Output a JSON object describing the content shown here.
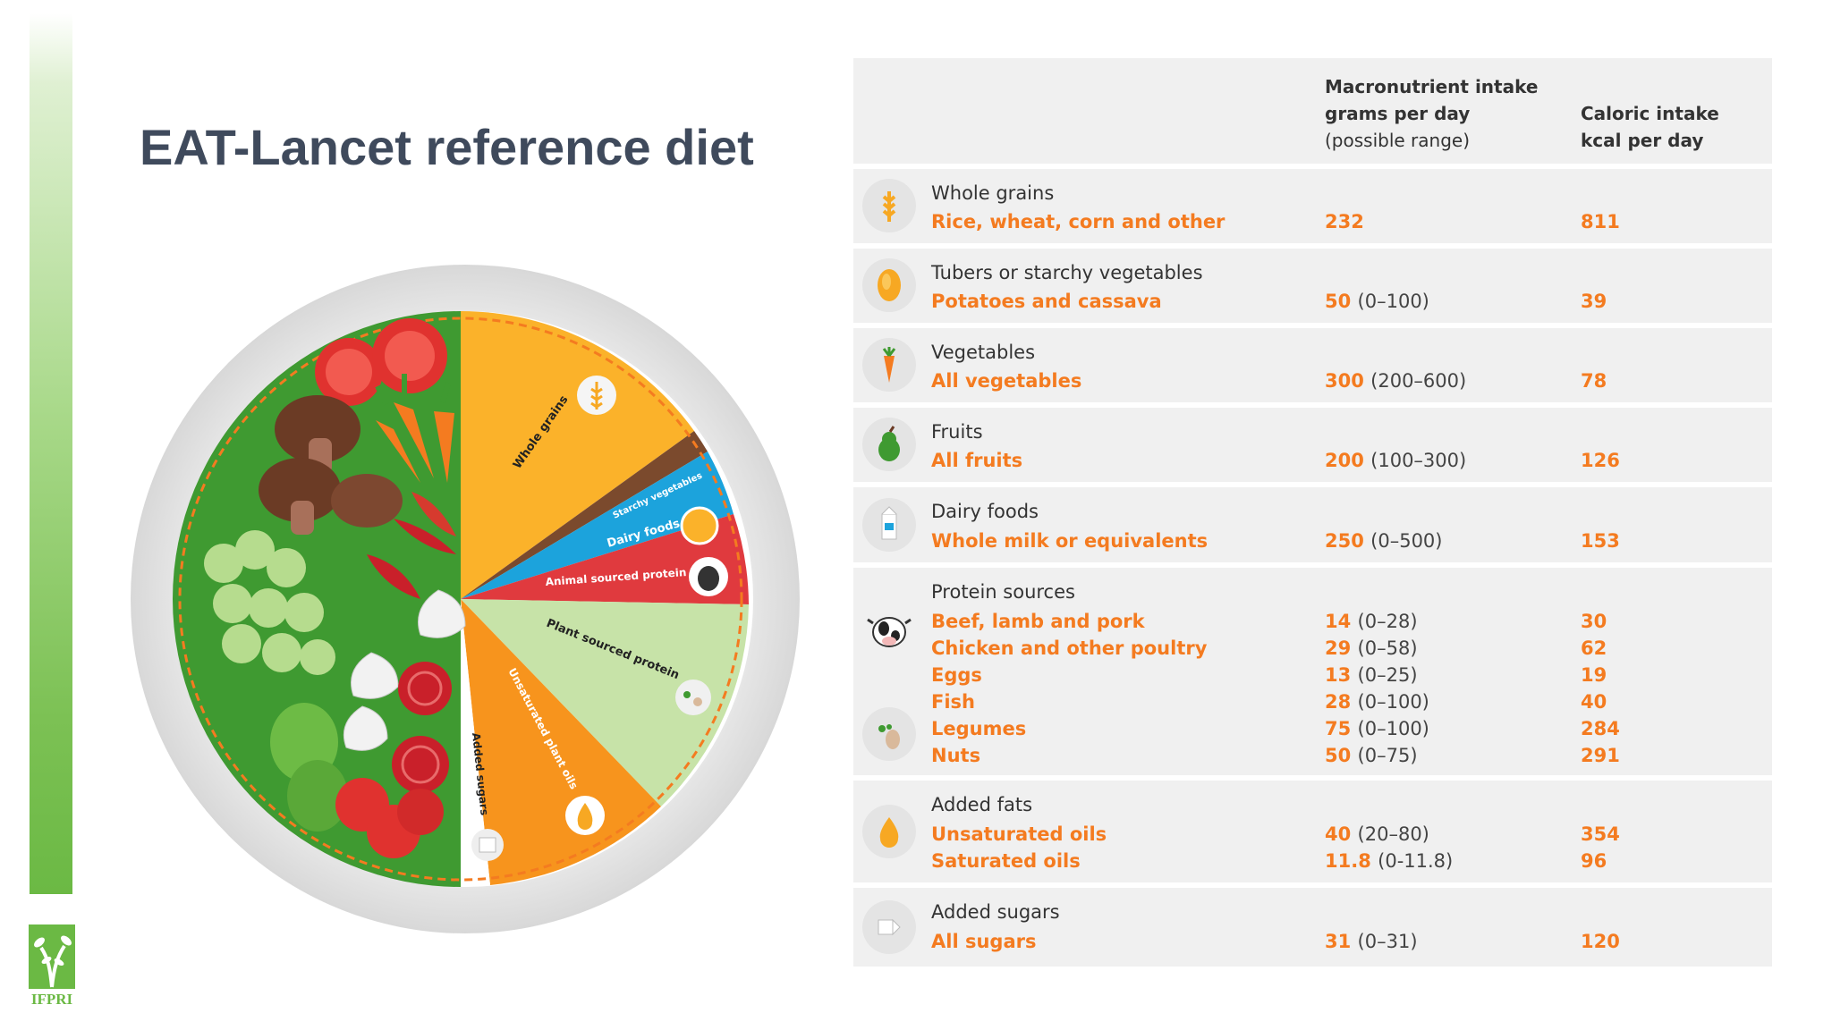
{
  "title": "EAT-Lancet reference diet",
  "logo": {
    "text": "IFPRI"
  },
  "plate": {
    "labels": {
      "whole_grains": "Whole grains",
      "starchy_vegetables": "Starchy vegetables",
      "dairy_foods": "Dairy foods",
      "animal_protein": "Animal sourced protein",
      "plant_protein": "Plant sourced protein",
      "unsaturated_oils": "Unsaturated plant oils",
      "added_sugars": "Added sugars"
    },
    "colors": {
      "whole_grains": "#fbb22a",
      "starchy_vegetables": "#7b4a2d",
      "dairy_foods": "#1ca3dc",
      "animal_protein": "#e03a3e",
      "plant_protein": "#c7e3a8",
      "unsaturated_oils": "#f7941d",
      "added_sugars": "#ffffff",
      "vegetables_fruits": "#3f9a31"
    }
  },
  "table": {
    "header": {
      "macro_l1": "Macronutrient intake",
      "macro_l2": "grams per day",
      "macro_l3": "(possible range)",
      "cal_l1": "Caloric intake",
      "cal_l2": "kcal per day"
    },
    "rows": [
      {
        "category": "Whole grains",
        "icon": "wheat-icon",
        "items": [
          {
            "name": "Rice, wheat, corn and other",
            "grams": "232",
            "range": "",
            "kcal": "811"
          }
        ]
      },
      {
        "category": "Tubers or starchy vegetables",
        "icon": "potato-icon",
        "items": [
          {
            "name": "Potatoes and cassava",
            "grams": "50",
            "range": "(0–100)",
            "kcal": "39"
          }
        ]
      },
      {
        "category": "Vegetables",
        "icon": "carrot-icon",
        "items": [
          {
            "name": "All vegetables",
            "grams": "300",
            "range": "(200–600)",
            "kcal": "78"
          }
        ]
      },
      {
        "category": "Fruits",
        "icon": "pear-icon",
        "items": [
          {
            "name": "All fruits",
            "grams": "200",
            "range": "(100–300)",
            "kcal": "126"
          }
        ]
      },
      {
        "category": "Dairy foods",
        "icon": "milk-carton-icon",
        "items": [
          {
            "name": "Whole milk or equivalents",
            "grams": "250",
            "range": "(0–500)",
            "kcal": "153"
          }
        ]
      },
      {
        "category": "Protein sources",
        "icon": "cow-icon",
        "icon2": "legumes-icon",
        "items": [
          {
            "name": "Beef, lamb and pork",
            "grams": "14",
            "range": "(0–28)",
            "kcal": "30"
          },
          {
            "name": "Chicken and other poultry",
            "grams": "29",
            "range": "(0–58)",
            "kcal": "62"
          },
          {
            "name": "Eggs",
            "grams": "13",
            "range": "(0–25)",
            "kcal": "19"
          },
          {
            "name": "Fish",
            "grams": "28",
            "range": "(0–100)",
            "kcal": "40"
          },
          {
            "name": "Legumes",
            "grams": "75",
            "range": "(0–100)",
            "kcal": "284"
          },
          {
            "name": "Nuts",
            "grams": "50",
            "range": "(0–75)",
            "kcal": "291"
          }
        ]
      },
      {
        "category": "Added fats",
        "icon": "oil-drop-icon",
        "items": [
          {
            "name": "Unsaturated oils",
            "grams": "40",
            "range": "(20–80)",
            "kcal": "354"
          },
          {
            "name": "Saturated oils",
            "grams": "11.8",
            "range": "(0-11.8)",
            "kcal": "96"
          }
        ]
      },
      {
        "category": "Added sugars",
        "icon": "sugar-cube-icon",
        "items": [
          {
            "name": "All sugars",
            "grams": "31",
            "range": "(0–31)",
            "kcal": "120"
          }
        ]
      }
    ]
  }
}
